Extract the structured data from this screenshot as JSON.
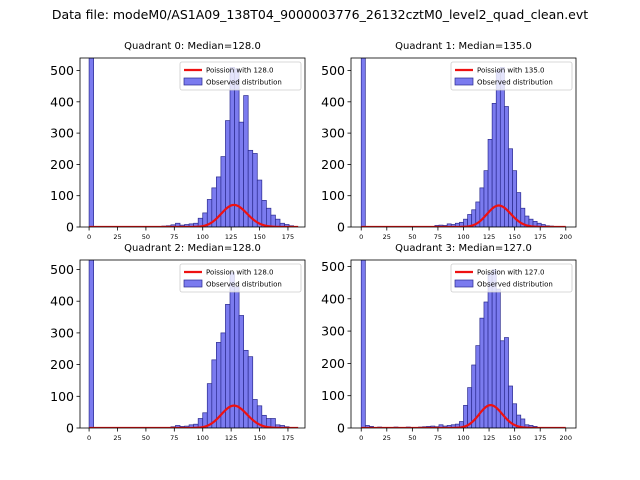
{
  "figure": {
    "suptitle": "Data file: modeM0/AS1A09_138T04_9000003776_26132cztM0_level2_quad_clean.evt"
  },
  "colors": {
    "bar_fill": "#7b7bef",
    "bar_edge": "#2b2b8f",
    "poisson_line": "#ee1111"
  },
  "chart_data": [
    {
      "type": "bar",
      "title": "Quadrant 0: Median=128.0",
      "median": 128.0,
      "xlim": [
        -8,
        190
      ],
      "ylim": [
        0,
        540
      ],
      "xticks": [
        0,
        25,
        50,
        75,
        100,
        125,
        150,
        175
      ],
      "yticks": [
        0,
        100,
        200,
        300,
        400,
        500
      ],
      "legend": {
        "position": "top-right",
        "line_label": "Poission with 128.0",
        "bar_label": "Observed distribution"
      },
      "bin_width": 4,
      "bins": [
        {
          "x": 0,
          "count": 540
        },
        {
          "x": 60,
          "count": 2
        },
        {
          "x": 64,
          "count": 3
        },
        {
          "x": 68,
          "count": 4
        },
        {
          "x": 72,
          "count": 7
        },
        {
          "x": 76,
          "count": 12
        },
        {
          "x": 80,
          "count": 6
        },
        {
          "x": 84,
          "count": 8
        },
        {
          "x": 88,
          "count": 10
        },
        {
          "x": 92,
          "count": 12
        },
        {
          "x": 96,
          "count": 28
        },
        {
          "x": 100,
          "count": 45
        },
        {
          "x": 104,
          "count": 88
        },
        {
          "x": 108,
          "count": 125
        },
        {
          "x": 112,
          "count": 160
        },
        {
          "x": 116,
          "count": 225
        },
        {
          "x": 120,
          "count": 340
        },
        {
          "x": 124,
          "count": 510
        },
        {
          "x": 128,
          "count": 505
        },
        {
          "x": 132,
          "count": 335
        },
        {
          "x": 136,
          "count": 420
        },
        {
          "x": 140,
          "count": 245
        },
        {
          "x": 144,
          "count": 235
        },
        {
          "x": 148,
          "count": 150
        },
        {
          "x": 152,
          "count": 85
        },
        {
          "x": 156,
          "count": 60
        },
        {
          "x": 160,
          "count": 38
        },
        {
          "x": 164,
          "count": 25
        },
        {
          "x": 168,
          "count": 12
        },
        {
          "x": 172,
          "count": 8
        },
        {
          "x": 176,
          "count": 4
        }
      ],
      "poisson_curve": {
        "mean": 128.0,
        "amplitude": 2000,
        "x_range": [
          0,
          184
        ]
      }
    },
    {
      "type": "bar",
      "title": "Quadrant 1: Median=135.0",
      "median": 135.0,
      "xlim": [
        -10,
        210
      ],
      "ylim": [
        0,
        540
      ],
      "xticks": [
        0,
        25,
        50,
        75,
        100,
        125,
        150,
        175,
        200
      ],
      "yticks": [
        0,
        100,
        200,
        300,
        400,
        500
      ],
      "legend": {
        "position": "top-right",
        "line_label": "Poission with 135.0",
        "bar_label": "Observed distribution"
      },
      "bin_width": 4,
      "bins": [
        {
          "x": 0,
          "count": 540
        },
        {
          "x": 72,
          "count": 5
        },
        {
          "x": 76,
          "count": 6
        },
        {
          "x": 80,
          "count": 5
        },
        {
          "x": 84,
          "count": 10
        },
        {
          "x": 88,
          "count": 8
        },
        {
          "x": 92,
          "count": 12
        },
        {
          "x": 96,
          "count": 15
        },
        {
          "x": 100,
          "count": 25
        },
        {
          "x": 104,
          "count": 40
        },
        {
          "x": 108,
          "count": 55
        },
        {
          "x": 112,
          "count": 80
        },
        {
          "x": 116,
          "count": 125
        },
        {
          "x": 120,
          "count": 180
        },
        {
          "x": 124,
          "count": 280
        },
        {
          "x": 128,
          "count": 395
        },
        {
          "x": 132,
          "count": 500
        },
        {
          "x": 136,
          "count": 510
        },
        {
          "x": 140,
          "count": 385
        },
        {
          "x": 144,
          "count": 250
        },
        {
          "x": 148,
          "count": 180
        },
        {
          "x": 152,
          "count": 110
        },
        {
          "x": 156,
          "count": 60
        },
        {
          "x": 160,
          "count": 35
        },
        {
          "x": 164,
          "count": 25
        },
        {
          "x": 168,
          "count": 18
        },
        {
          "x": 172,
          "count": 12
        },
        {
          "x": 176,
          "count": 8
        },
        {
          "x": 180,
          "count": 4
        },
        {
          "x": 184,
          "count": 3
        }
      ],
      "poisson_curve": {
        "mean": 135.0,
        "amplitude": 2000,
        "x_range": [
          0,
          200
        ]
      }
    },
    {
      "type": "bar",
      "title": "Quadrant 2: Median=128.0",
      "median": 128.0,
      "xlim": [
        -8,
        190
      ],
      "ylim": [
        0,
        530
      ],
      "xticks": [
        0,
        25,
        50,
        75,
        100,
        125,
        150,
        175
      ],
      "yticks": [
        0,
        100,
        200,
        300,
        400,
        500
      ],
      "legend": {
        "position": "top-right",
        "line_label": "Poission with 128.0",
        "bar_label": "Observed distribution"
      },
      "bin_width": 4,
      "bins": [
        {
          "x": 0,
          "count": 530
        },
        {
          "x": 68,
          "count": 2
        },
        {
          "x": 72,
          "count": 4
        },
        {
          "x": 76,
          "count": 8
        },
        {
          "x": 80,
          "count": 5
        },
        {
          "x": 84,
          "count": 6
        },
        {
          "x": 88,
          "count": 10
        },
        {
          "x": 92,
          "count": 12
        },
        {
          "x": 96,
          "count": 30
        },
        {
          "x": 100,
          "count": 48
        },
        {
          "x": 104,
          "count": 140
        },
        {
          "x": 108,
          "count": 215
        },
        {
          "x": 112,
          "count": 270
        },
        {
          "x": 116,
          "count": 300
        },
        {
          "x": 120,
          "count": 390
        },
        {
          "x": 124,
          "count": 490
        },
        {
          "x": 128,
          "count": 445
        },
        {
          "x": 132,
          "count": 355
        },
        {
          "x": 136,
          "count": 245
        },
        {
          "x": 140,
          "count": 225
        },
        {
          "x": 144,
          "count": 90
        },
        {
          "x": 148,
          "count": 70
        },
        {
          "x": 152,
          "count": 40
        },
        {
          "x": 156,
          "count": 30
        },
        {
          "x": 160,
          "count": 30
        },
        {
          "x": 164,
          "count": 10
        },
        {
          "x": 168,
          "count": 8
        },
        {
          "x": 172,
          "count": 4
        }
      ],
      "poisson_curve": {
        "mean": 128.0,
        "amplitude": 2000,
        "x_range": [
          0,
          184
        ]
      }
    },
    {
      "type": "bar",
      "title": "Quadrant 3: Median=127.0",
      "median": 127.0,
      "xlim": [
        -10,
        210
      ],
      "ylim": [
        0,
        520
      ],
      "xticks": [
        0,
        25,
        50,
        75,
        100,
        125,
        150,
        175,
        200
      ],
      "yticks": [
        0,
        100,
        200,
        300,
        400,
        500
      ],
      "legend": {
        "position": "top-right",
        "line_label": "Poission with 127.0",
        "bar_label": "Observed distribution"
      },
      "bin_width": 4,
      "bins": [
        {
          "x": 0,
          "count": 520
        },
        {
          "x": 4,
          "count": 8
        },
        {
          "x": 8,
          "count": 5
        },
        {
          "x": 12,
          "count": 2
        },
        {
          "x": 16,
          "count": 3
        },
        {
          "x": 20,
          "count": 2
        },
        {
          "x": 28,
          "count": 2
        },
        {
          "x": 32,
          "count": 3
        },
        {
          "x": 36,
          "count": 2
        },
        {
          "x": 44,
          "count": 3
        },
        {
          "x": 48,
          "count": 2
        },
        {
          "x": 56,
          "count": 3
        },
        {
          "x": 60,
          "count": 4
        },
        {
          "x": 64,
          "count": 5
        },
        {
          "x": 68,
          "count": 6
        },
        {
          "x": 72,
          "count": 4
        },
        {
          "x": 76,
          "count": 10
        },
        {
          "x": 80,
          "count": 6
        },
        {
          "x": 84,
          "count": 8
        },
        {
          "x": 88,
          "count": 10
        },
        {
          "x": 92,
          "count": 12
        },
        {
          "x": 96,
          "count": 20
        },
        {
          "x": 100,
          "count": 70
        },
        {
          "x": 104,
          "count": 125
        },
        {
          "x": 108,
          "count": 195
        },
        {
          "x": 112,
          "count": 255
        },
        {
          "x": 116,
          "count": 340
        },
        {
          "x": 120,
          "count": 390
        },
        {
          "x": 124,
          "count": 480
        },
        {
          "x": 128,
          "count": 490
        },
        {
          "x": 132,
          "count": 430
        },
        {
          "x": 136,
          "count": 270
        },
        {
          "x": 140,
          "count": 280
        },
        {
          "x": 144,
          "count": 130
        },
        {
          "x": 148,
          "count": 75
        },
        {
          "x": 152,
          "count": 40
        },
        {
          "x": 156,
          "count": 28
        },
        {
          "x": 160,
          "count": 10
        },
        {
          "x": 164,
          "count": 8
        },
        {
          "x": 168,
          "count": 5
        }
      ],
      "poisson_curve": {
        "mean": 127.0,
        "amplitude": 2000,
        "x_range": [
          0,
          200
        ]
      }
    }
  ]
}
